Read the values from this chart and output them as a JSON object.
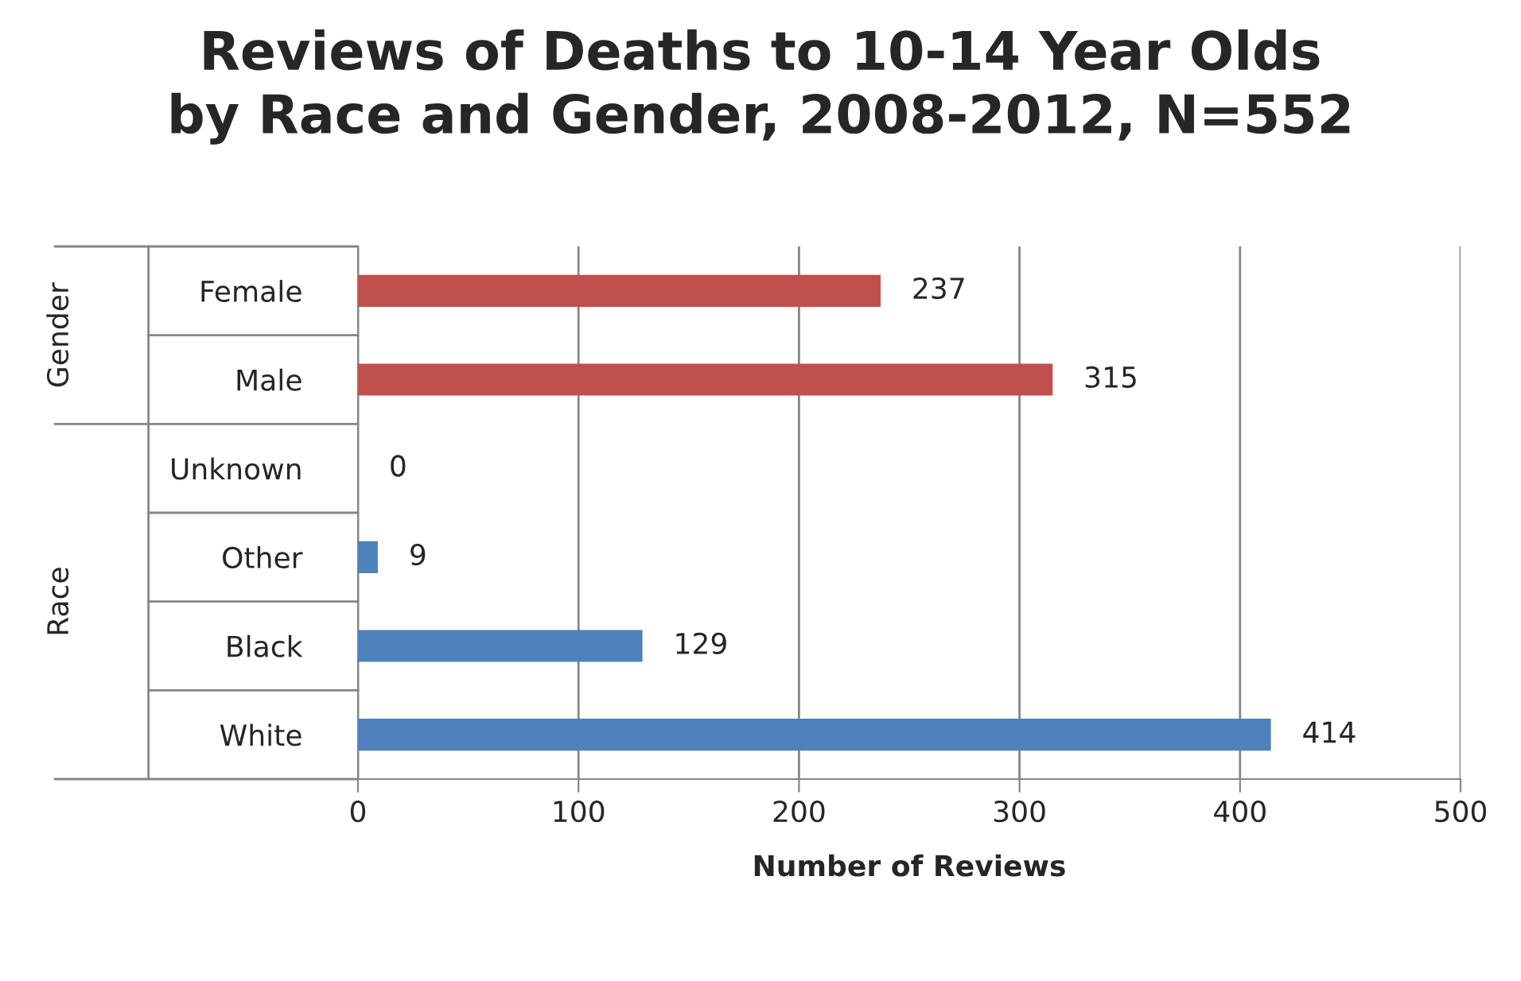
{
  "chart_data": {
    "type": "bar",
    "orientation": "horizontal",
    "title": "Reviews of Deaths to 10-14 Year Olds\nby Race and Gender, 2008-2012, N=552",
    "xlabel": "Number of Reviews",
    "categories": [
      "Female",
      "Male",
      "Unknown",
      "Other",
      "Black",
      "White"
    ],
    "values": [
      237,
      315,
      0,
      9,
      129,
      414
    ],
    "colors": [
      "#c0504d",
      "#c0504d",
      "#4f81bd",
      "#4f81bd",
      "#4f81bd",
      "#4f81bd"
    ],
    "xlim": [
      0,
      500
    ],
    "xticks": [
      0,
      100,
      200,
      300,
      400,
      500
    ],
    "grid": "x",
    "data_labels": true,
    "annotations": [
      "Gender",
      "Race"
    ]
  }
}
